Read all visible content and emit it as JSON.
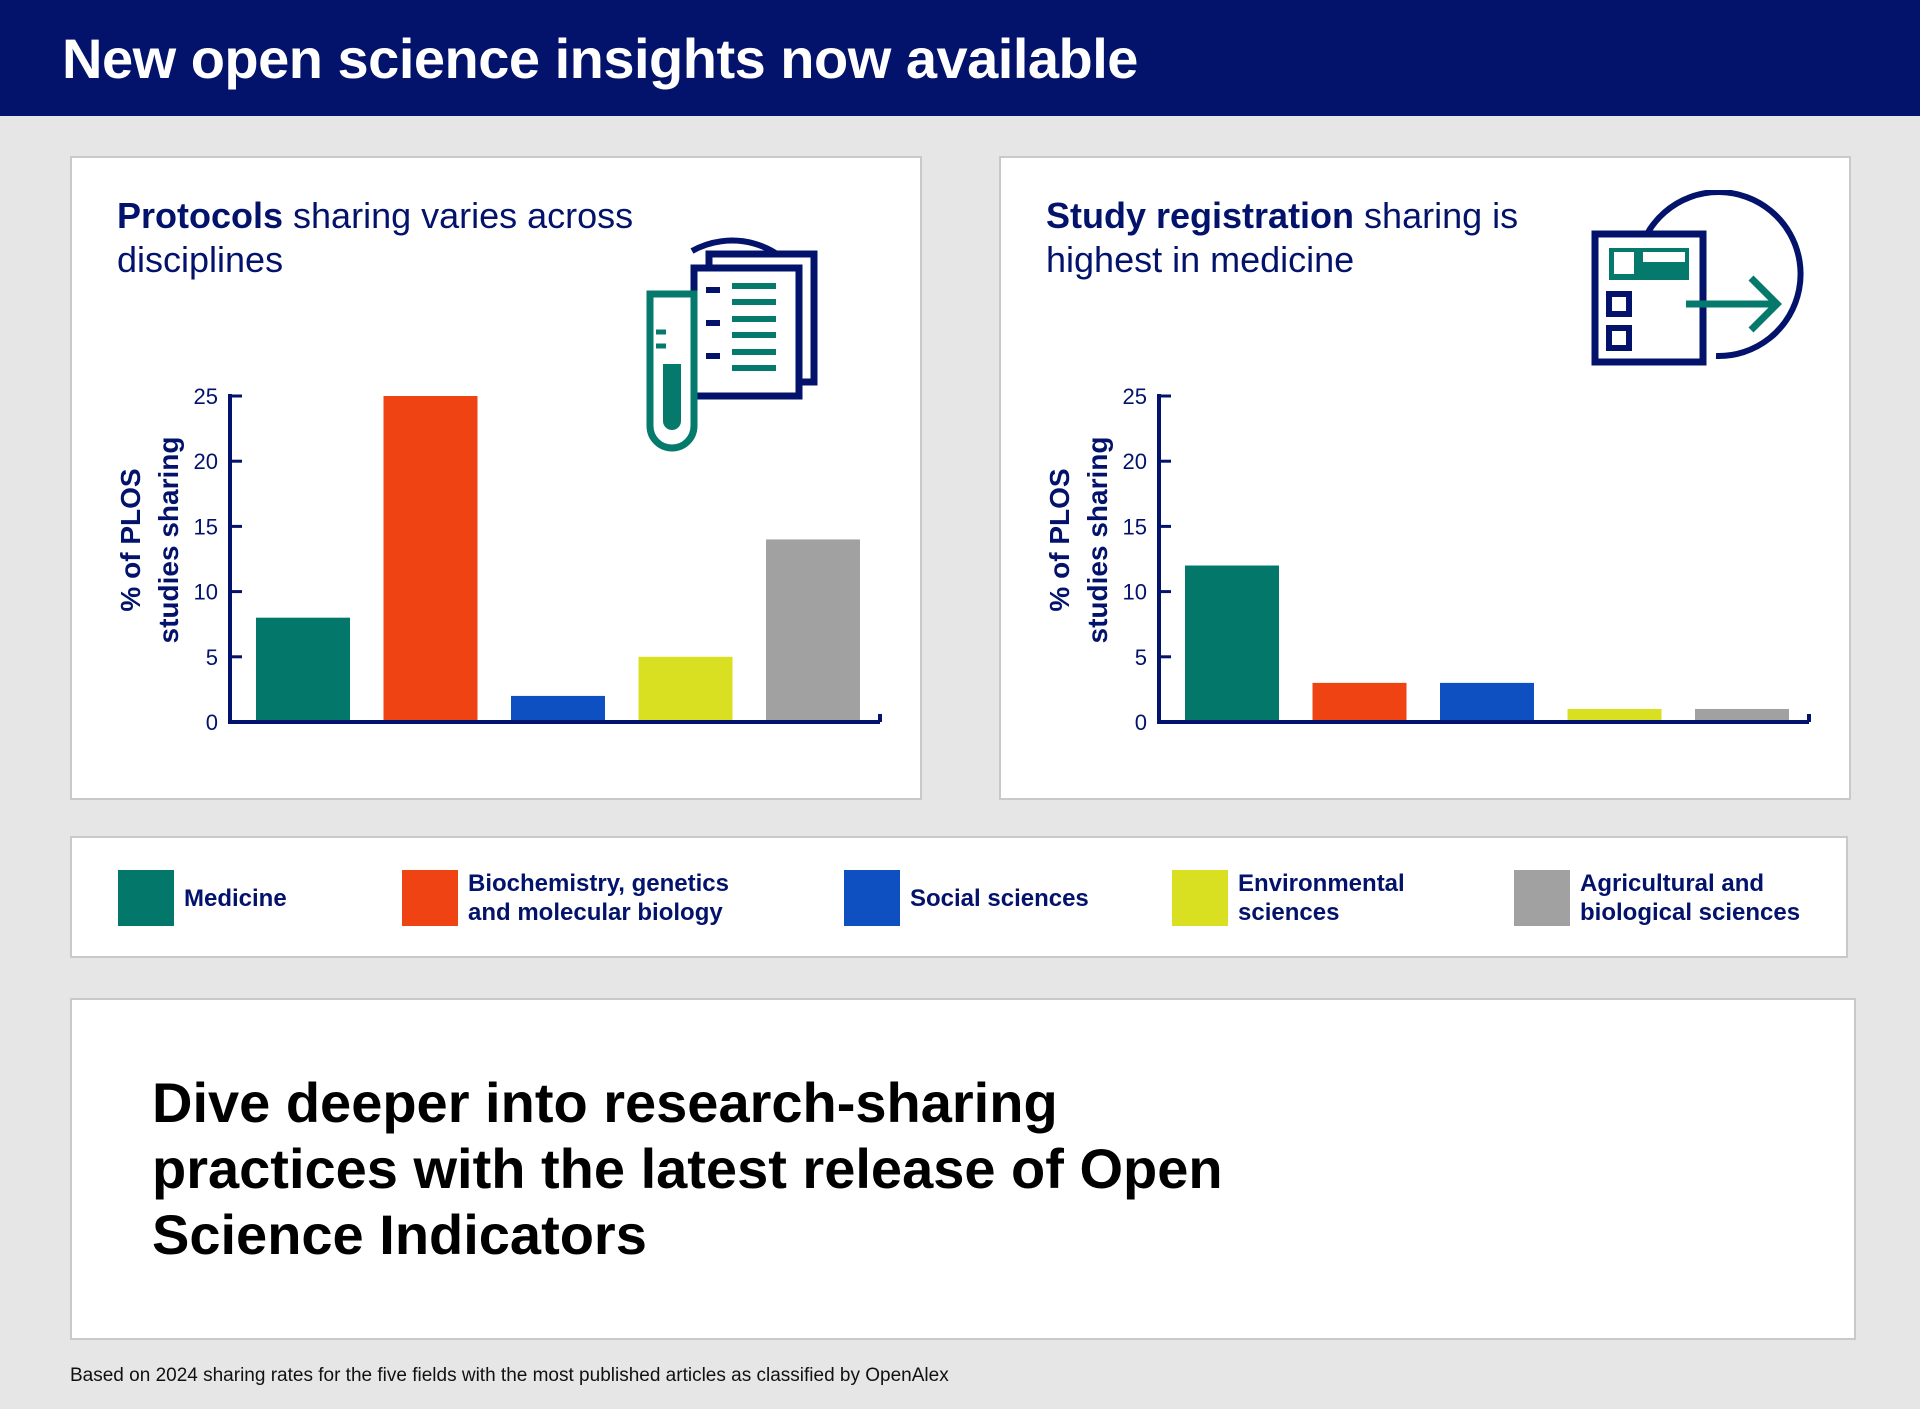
{
  "header": {
    "title": "New open science insights now available"
  },
  "colors": {
    "navy": "#03136b",
    "medicine": "#02776a",
    "biochem": "#f04313",
    "social": "#0e4fc2",
    "environmental": "#d8e021",
    "agricultural": "#a1a1a1",
    "icon_teal": "#057a6c"
  },
  "panels": [
    {
      "title_bold": "Protocols",
      "title_rest": " sharing varies across disciplines",
      "icon": "protocol-test-tube-icon"
    },
    {
      "title_bold": "Study registration",
      "title_rest": " sharing is highest in medicine",
      "icon": "registration-form-arrow-icon"
    }
  ],
  "chart_data": [
    {
      "type": "bar",
      "title": "Protocols sharing varies across disciplines",
      "categories": [
        "Medicine",
        "Biochemistry, genetics and molecular biology",
        "Social sciences",
        "Environmental sciences",
        "Agricultural and biological sciences"
      ],
      "values": [
        8,
        25,
        2,
        5,
        14
      ],
      "ylabel": "% of PLOS studies sharing",
      "ylabel_lines": [
        "% of PLOS",
        "studies sharing"
      ],
      "yticks": [
        0,
        5,
        10,
        15,
        20,
        25
      ],
      "ylim": [
        0,
        25
      ],
      "xlabel": ""
    },
    {
      "type": "bar",
      "title": "Study registration sharing is highest in medicine",
      "categories": [
        "Medicine",
        "Biochemistry, genetics and molecular biology",
        "Social sciences",
        "Environmental sciences",
        "Agricultural and biological sciences"
      ],
      "values": [
        12,
        3,
        3,
        1,
        1
      ],
      "ylabel": "% of PLOS studies sharing",
      "ylabel_lines": [
        "% of PLOS",
        "studies sharing"
      ],
      "yticks": [
        0,
        5,
        10,
        15,
        20,
        25
      ],
      "ylim": [
        0,
        25
      ],
      "xlabel": ""
    }
  ],
  "legend": [
    {
      "label_lines": [
        "Medicine"
      ],
      "color": "#02776a"
    },
    {
      "label_lines": [
        "Biochemistry, genetics",
        "and molecular biology"
      ],
      "color": "#f04313"
    },
    {
      "label_lines": [
        "Social sciences"
      ],
      "color": "#0e4fc2"
    },
    {
      "label_lines": [
        "Environmental",
        "sciences"
      ],
      "color": "#d8e021"
    },
    {
      "label_lines": [
        "Agricultural and",
        "biological sciences"
      ],
      "color": "#a1a1a1"
    }
  ],
  "cta": {
    "text": "Dive deeper into research-sharing practices with the latest release of Open Science Indicators"
  },
  "footnote": "Based on 2024 sharing rates for the five fields with the most published articles as classified by OpenAlex"
}
